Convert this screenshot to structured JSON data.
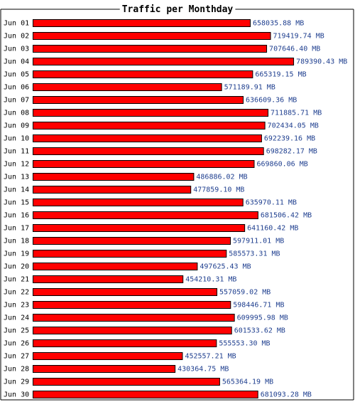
{
  "chart_data": {
    "type": "bar",
    "orientation": "horizontal",
    "title": "Traffic per Monthday",
    "unit": "MB",
    "xlim": [
      0,
      800000
    ],
    "categories": [
      "Jun 01",
      "Jun 02",
      "Jun 03",
      "Jun 04",
      "Jun 05",
      "Jun 06",
      "Jun 07",
      "Jun 08",
      "Jun 09",
      "Jun 10",
      "Jun 11",
      "Jun 12",
      "Jun 13",
      "Jun 14",
      "Jun 15",
      "Jun 16",
      "Jun 17",
      "Jun 18",
      "Jun 19",
      "Jun 20",
      "Jun 21",
      "Jun 22",
      "Jun 23",
      "Jun 24",
      "Jun 25",
      "Jun 26",
      "Jun 27",
      "Jun 28",
      "Jun 29",
      "Jun 30"
    ],
    "values": [
      658035.88,
      719419.74,
      707646.4,
      789390.43,
      665319.15,
      571189.91,
      636609.36,
      711885.71,
      702434.05,
      692239.16,
      698282.17,
      669860.06,
      486886.02,
      477859.1,
      635970.11,
      681506.42,
      641160.42,
      597911.01,
      585573.31,
      497625.43,
      454210.31,
      557059.02,
      598446.71,
      609995.98,
      601533.62,
      555553.3,
      452557.21,
      430364.75,
      565364.19,
      681093.28
    ],
    "value_labels": [
      "658035.88 MB",
      "719419.74 MB",
      "707646.40 MB",
      "789390.43 MB",
      "665319.15 MB",
      "571189.91 MB",
      "636609.36 MB",
      "711885.71 MB",
      "702434.05 MB",
      "692239.16 MB",
      "698282.17 MB",
      "669860.06 MB",
      "486886.02 MB",
      "477859.10 MB",
      "635970.11 MB",
      "681506.42 MB",
      "641160.42 MB",
      "597911.01 MB",
      "585573.31 MB",
      "497625.43 MB",
      "454210.31 MB",
      "557059.02 MB",
      "598446.71 MB",
      "609995.98 MB",
      "601533.62 MB",
      "555553.30 MB",
      "452557.21 MB",
      "430364.75 MB",
      "565364.19 MB",
      "681093.28 MB"
    ],
    "colors": {
      "bar": "#ff0000",
      "bar_border": "#000000",
      "label": "#1f3f8f",
      "frame": "#000000"
    }
  }
}
